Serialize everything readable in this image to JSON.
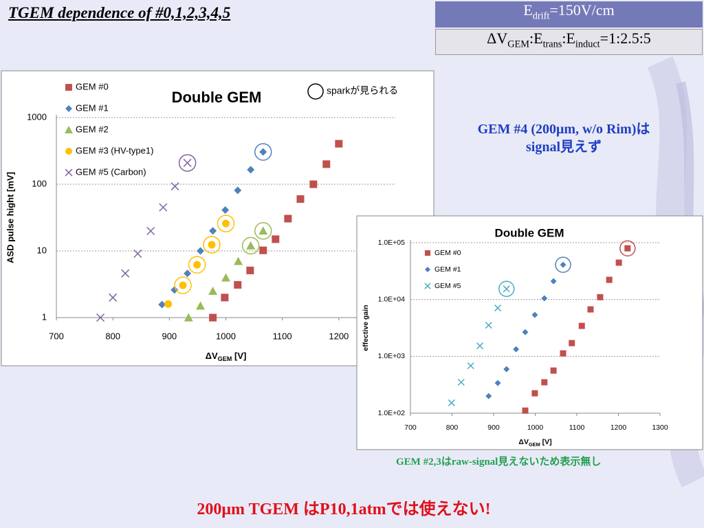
{
  "header": {
    "title": "TGEM dependence of #0,1,2,3,4,5"
  },
  "conditions": [
    [
      {
        "text": "E"
      },
      {
        "text": "drift",
        "sub": true
      },
      {
        "text": "=150V/cm"
      }
    ],
    [
      {
        "text": "ΔV"
      },
      {
        "text": "GEM",
        "sub": true
      },
      {
        "text": ":E"
      },
      {
        "text": "trans",
        "sub": true
      },
      {
        "text": ":E"
      },
      {
        "text": "induct",
        "sub": true
      },
      {
        "text": "=1:2.5:5"
      }
    ]
  ],
  "notes": {
    "gem4": [
      "GEM #4 (200μm, w/o Rim)は",
      "signal見えず"
    ],
    "gem23": "GEM #2,3はraw-signal見えないため表示無し",
    "conclusion": "200μm TGEM はP10,1atmでは使えない!"
  },
  "chart_data": [
    {
      "type": "scatter",
      "title": "Double GEM",
      "x_label": [
        {
          "text": "ΔV"
        },
        {
          "text": "GEM",
          "sub": true
        },
        {
          "text": " [V]"
        }
      ],
      "y_label": "ASD pulse hight [mV]",
      "xlim": [
        700,
        1300
      ],
      "xticks": [
        700,
        800,
        900,
        1000,
        1100,
        1200
      ],
      "ylim": [
        1,
        1000
      ],
      "yticks": [
        1,
        10,
        100,
        1000
      ],
      "log_y": true,
      "grid": true,
      "spark_label": "sparkが見られる",
      "series": [
        {
          "name": "GEM #0",
          "color": "#c0504d",
          "marker": "square",
          "x": [
            977,
            998,
            1021,
            1043,
            1066,
            1088,
            1110,
            1132,
            1155,
            1178,
            1200
          ],
          "values": [
            1,
            2,
            3.1,
            5.1,
            10.2,
            15,
            30.5,
            60,
            100,
            200,
            405
          ],
          "spark": []
        },
        {
          "name": "GEM #1",
          "color": "#4f81bd",
          "marker": "diamond",
          "x": [
            887,
            909,
            932,
            955,
            977,
            999,
            1021,
            1044,
            1066
          ],
          "values": [
            1.57,
            2.6,
            4.6,
            10,
            20,
            41,
            81,
            165,
            305
          ],
          "spark": [
            8
          ]
        },
        {
          "name": "GEM #2",
          "color": "#9bbb59",
          "marker": "triangle",
          "x": [
            934,
            955,
            977,
            1000,
            1022,
            1044,
            1066
          ],
          "values": [
            1,
            1.5,
            2.5,
            3.96,
            7,
            12,
            20
          ],
          "spark": [
            5,
            6
          ]
        },
        {
          "name": "GEM #3 (HV-type1)",
          "color": "#ffc000",
          "marker": "circle",
          "x": [
            898,
            924,
            949,
            975,
            1000
          ],
          "values": [
            1.6,
            3.05,
            6.2,
            12.4,
            25.8
          ],
          "spark": [
            1,
            2,
            3,
            4
          ]
        },
        {
          "name": "GEM #5 (Carbon)",
          "color": "#8064a2",
          "marker": "x",
          "x": [
            778,
            800,
            822,
            844,
            867,
            889,
            910,
            932
          ],
          "values": [
            1,
            2,
            4.6,
            9.1,
            19.9,
            45,
            93,
            209
          ],
          "spark": [
            7
          ]
        }
      ]
    },
    {
      "type": "scatter",
      "title": "Double GEM",
      "x_label": [
        {
          "text": "ΔV"
        },
        {
          "text": "GEM",
          "sub": true
        },
        {
          "text": " [V]"
        }
      ],
      "y_label": "effective gain",
      "xlim": [
        700,
        1300
      ],
      "xticks": [
        700,
        800,
        900,
        1000,
        1100,
        1200,
        1300
      ],
      "ylim": [
        100,
        100000
      ],
      "yticks": [
        {
          "value": 100,
          "label": "1.0E+02"
        },
        {
          "value": 1000,
          "label": "1.0E+03"
        },
        {
          "value": 10000,
          "label": "1.0E+04"
        },
        {
          "value": 100000,
          "label": "1.0E+05"
        }
      ],
      "log_y": true,
      "grid": true,
      "series": [
        {
          "name": "GEM #0",
          "color": "#c0504d",
          "marker": "square",
          "x": [
            976,
            999,
            1022,
            1044,
            1067,
            1088,
            1112,
            1133,
            1156,
            1178,
            1201,
            1222
          ],
          "values": [
            111,
            224,
            350,
            562,
            1128,
            1710,
            3435,
            6700,
            11000,
            22200,
            44500,
            79600
          ],
          "spark": [
            11
          ]
        },
        {
          "name": "GEM #1",
          "color": "#4f81bd",
          "marker": "diamond",
          "x": [
            888,
            910,
            931,
            954,
            976,
            999,
            1022,
            1044,
            1067
          ],
          "values": [
            200,
            340,
            594,
            1333,
            2670,
            5360,
            10500,
            21000,
            40900
          ],
          "spark": [
            8
          ]
        },
        {
          "name": "GEM #5",
          "color": "#4bacc6",
          "marker": "x",
          "x": [
            799,
            822,
            845,
            867,
            888,
            910,
            931
          ],
          "values": [
            152,
            350,
            683,
            1530,
            3530,
            7080,
            15400
          ],
          "spark": [
            6
          ]
        }
      ]
    }
  ]
}
